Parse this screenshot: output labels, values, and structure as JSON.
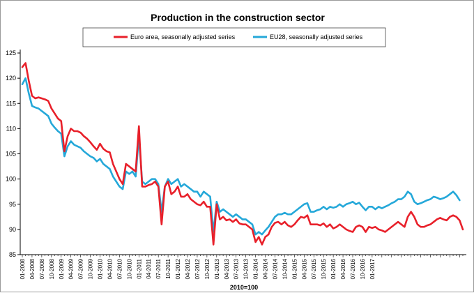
{
  "chart_data": {
    "type": "line",
    "title": "Production in the construction sector",
    "xlabel": "2010=100",
    "ylabel": "",
    "ylim": [
      85,
      125
    ],
    "yticks": [
      85,
      90,
      95,
      100,
      105,
      110,
      115,
      120,
      125
    ],
    "grid": false,
    "legend_position": "top",
    "x_tick_labels": [
      "01-2008",
      "04-2008",
      "07-2008",
      "10-2008",
      "01-2009",
      "04-2009",
      "07-2009",
      "10-2009",
      "01-2010",
      "04-2010",
      "07-2010",
      "10-2010",
      "01-2011",
      "04-2011",
      "07-2011",
      "10-2011",
      "01-2012",
      "04-2012",
      "07-2012",
      "10-2012",
      "01-2013",
      "04-2013",
      "07-2013",
      "10-2013",
      "01-2014",
      "04-2014",
      "07-2014",
      "10-2014",
      "01-2015",
      "04-2015",
      "07-2015",
      "10-2015",
      "01-2016",
      "04-2016",
      "07-2016",
      "10-2016",
      "01-2017"
    ],
    "series": [
      {
        "name": "Euro area, seasonally adjusted series",
        "color": "#e8202a",
        "values": [
          122.2,
          123.0,
          119.5,
          116.5,
          116.0,
          116.2,
          116.0,
          115.8,
          115.5,
          114.0,
          113.0,
          112.0,
          111.5,
          105.5,
          108.5,
          110.0,
          109.5,
          109.5,
          109.2,
          108.5,
          108.0,
          107.3,
          106.5,
          105.8,
          107.0,
          106.0,
          105.5,
          105.3,
          103.0,
          101.5,
          100.0,
          99.0,
          103.0,
          102.5,
          102.0,
          101.5,
          110.5,
          98.5,
          98.5,
          98.8,
          99.0,
          99.5,
          98.5,
          91.0,
          98.5,
          99.5,
          97.0,
          97.5,
          98.5,
          96.5,
          96.5,
          97.0,
          96.0,
          95.5,
          95.0,
          94.8,
          95.5,
          94.5,
          94.5,
          87.0,
          95.0,
          92.0,
          92.5,
          91.8,
          92.0,
          91.5,
          92.0,
          91.2,
          91.0,
          91.0,
          90.5,
          90.0,
          87.5,
          88.5,
          87.0,
          88.5,
          89.0,
          90.5,
          91.3,
          91.5,
          91.0,
          91.5,
          90.8,
          90.5,
          91.0,
          91.8,
          92.5,
          92.3,
          92.8,
          91.0,
          91.0,
          91.0,
          90.8,
          91.2,
          90.5,
          91.0,
          90.2,
          90.5,
          91.0,
          90.5,
          90.0,
          89.7,
          89.5,
          90.5,
          90.8,
          90.5,
          89.5,
          90.5,
          90.3,
          90.5,
          90.0,
          89.8,
          89.5,
          90.0,
          90.5,
          91.0,
          91.5,
          91.0,
          90.5,
          92.5,
          93.5,
          92.5,
          91.0,
          90.5,
          90.5,
          90.8,
          91.0,
          91.5,
          92.0,
          92.3,
          92.0,
          91.8,
          92.5,
          92.8,
          92.5,
          91.8,
          90.0
        ]
      },
      {
        "name": "EU28, seasonally adjusted series",
        "color": "#25a8d9",
        "values": [
          118.8,
          120.0,
          117.0,
          114.5,
          114.2,
          114.0,
          113.5,
          113.0,
          112.5,
          111.0,
          110.2,
          109.5,
          109.0,
          104.5,
          106.5,
          107.5,
          106.8,
          106.5,
          106.2,
          105.5,
          105.0,
          104.5,
          104.2,
          103.5,
          104.0,
          103.0,
          102.5,
          102.0,
          100.5,
          99.5,
          98.5,
          98.0,
          101.5,
          101.0,
          101.5,
          100.5,
          108.5,
          99.5,
          99.0,
          99.5,
          100.0,
          100.0,
          99.0,
          93.5,
          98.5,
          100.0,
          99.0,
          99.5,
          100.0,
          98.5,
          99.0,
          98.5,
          98.0,
          97.5,
          97.5,
          96.5,
          97.5,
          97.0,
          96.5,
          89.5,
          95.5,
          93.5,
          94.0,
          93.5,
          93.0,
          92.5,
          93.0,
          92.5,
          92.0,
          92.0,
          91.5,
          91.0,
          89.0,
          89.5,
          89.0,
          89.8,
          90.5,
          91.5,
          92.5,
          93.0,
          93.0,
          93.3,
          93.0,
          93.0,
          93.5,
          94.0,
          94.5,
          95.0,
          95.2,
          93.5,
          93.5,
          93.8,
          94.0,
          94.5,
          94.0,
          94.5,
          94.3,
          94.5,
          95.0,
          94.5,
          95.0,
          95.2,
          95.5,
          95.0,
          95.3,
          94.5,
          93.8,
          94.5,
          94.5,
          94.0,
          94.5,
          94.2,
          94.5,
          94.8,
          95.2,
          95.5,
          96.0,
          96.0,
          96.5,
          97.5,
          97.0,
          95.5,
          95.0,
          95.2,
          95.5,
          95.8,
          96.0,
          96.5,
          96.3,
          96.0,
          96.2,
          96.5,
          97.0,
          97.5,
          96.8,
          95.8
        ]
      }
    ]
  }
}
